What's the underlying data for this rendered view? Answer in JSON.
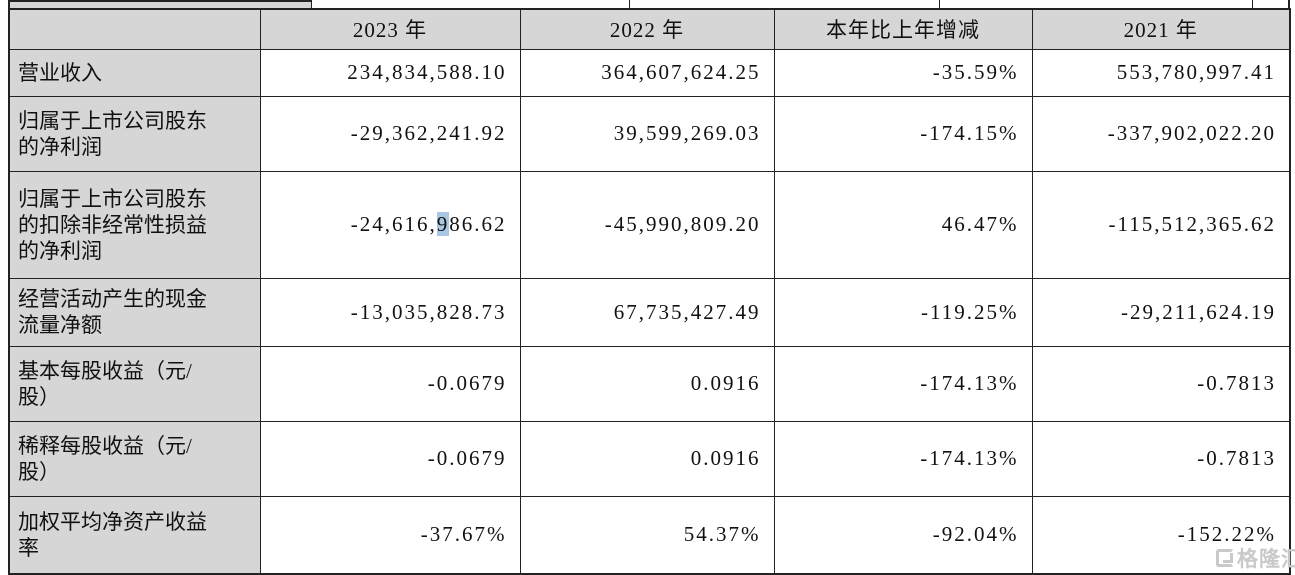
{
  "colors": {
    "header_bg": "#d6d6d6",
    "label_bg": "#d6d6d6",
    "cell_bg": "#ffffff",
    "border": "#222222",
    "text": "#111111",
    "selection_highlight": "#a9c7e1",
    "watermark": "#c9c9c9"
  },
  "table": {
    "columns": [
      {
        "key": "label",
        "header": ""
      },
      {
        "key": "y2023",
        "header": "2023 年"
      },
      {
        "key": "y2022",
        "header": "2022 年"
      },
      {
        "key": "change",
        "header": "本年比上年增减"
      },
      {
        "key": "y2021",
        "header": "2021 年"
      }
    ],
    "rows": [
      {
        "label": "营业收入",
        "y2023": "234,834,588.10",
        "y2022": "364,607,624.25",
        "change": "-35.59%",
        "y2021": "553,780,997.41"
      },
      {
        "label": "归属于上市公司股东\n的净利润",
        "y2023": "-29,362,241.92",
        "y2022": "39,599,269.03",
        "change": "-174.15%",
        "y2021": "-337,902,022.20"
      },
      {
        "label": "归属于上市公司股东\n的扣除非经常性损益\n的净利润",
        "y2023": "-24,616,986.62",
        "y2022": "-45,990,809.20",
        "change": "46.47%",
        "y2021": "-115,512,365.62",
        "highlight": {
          "col": "y2023",
          "pre": "-24,616,",
          "mark": "9",
          "post": "86.62"
        }
      },
      {
        "label": "经营活动产生的现金\n流量净额",
        "y2023": "-13,035,828.73",
        "y2022": "67,735,427.49",
        "change": "-119.25%",
        "y2021": "-29,211,624.19"
      },
      {
        "label": "基本每股收益（元/\n股）",
        "y2023": "-0.0679",
        "y2022": "0.0916",
        "change": "-174.13%",
        "y2021": "-0.7813"
      },
      {
        "label": "稀释每股收益（元/\n股）",
        "y2023": "-0.0679",
        "y2022": "0.0916",
        "change": "-174.13%",
        "y2021": "-0.7813"
      },
      {
        "label": "加权平均净资产收益\n率",
        "y2023": "-37.67%",
        "y2022": "54.37%",
        "change": "-92.04%",
        "y2021": "-152.22%"
      }
    ]
  },
  "watermark": {
    "text": "格隆汇"
  }
}
